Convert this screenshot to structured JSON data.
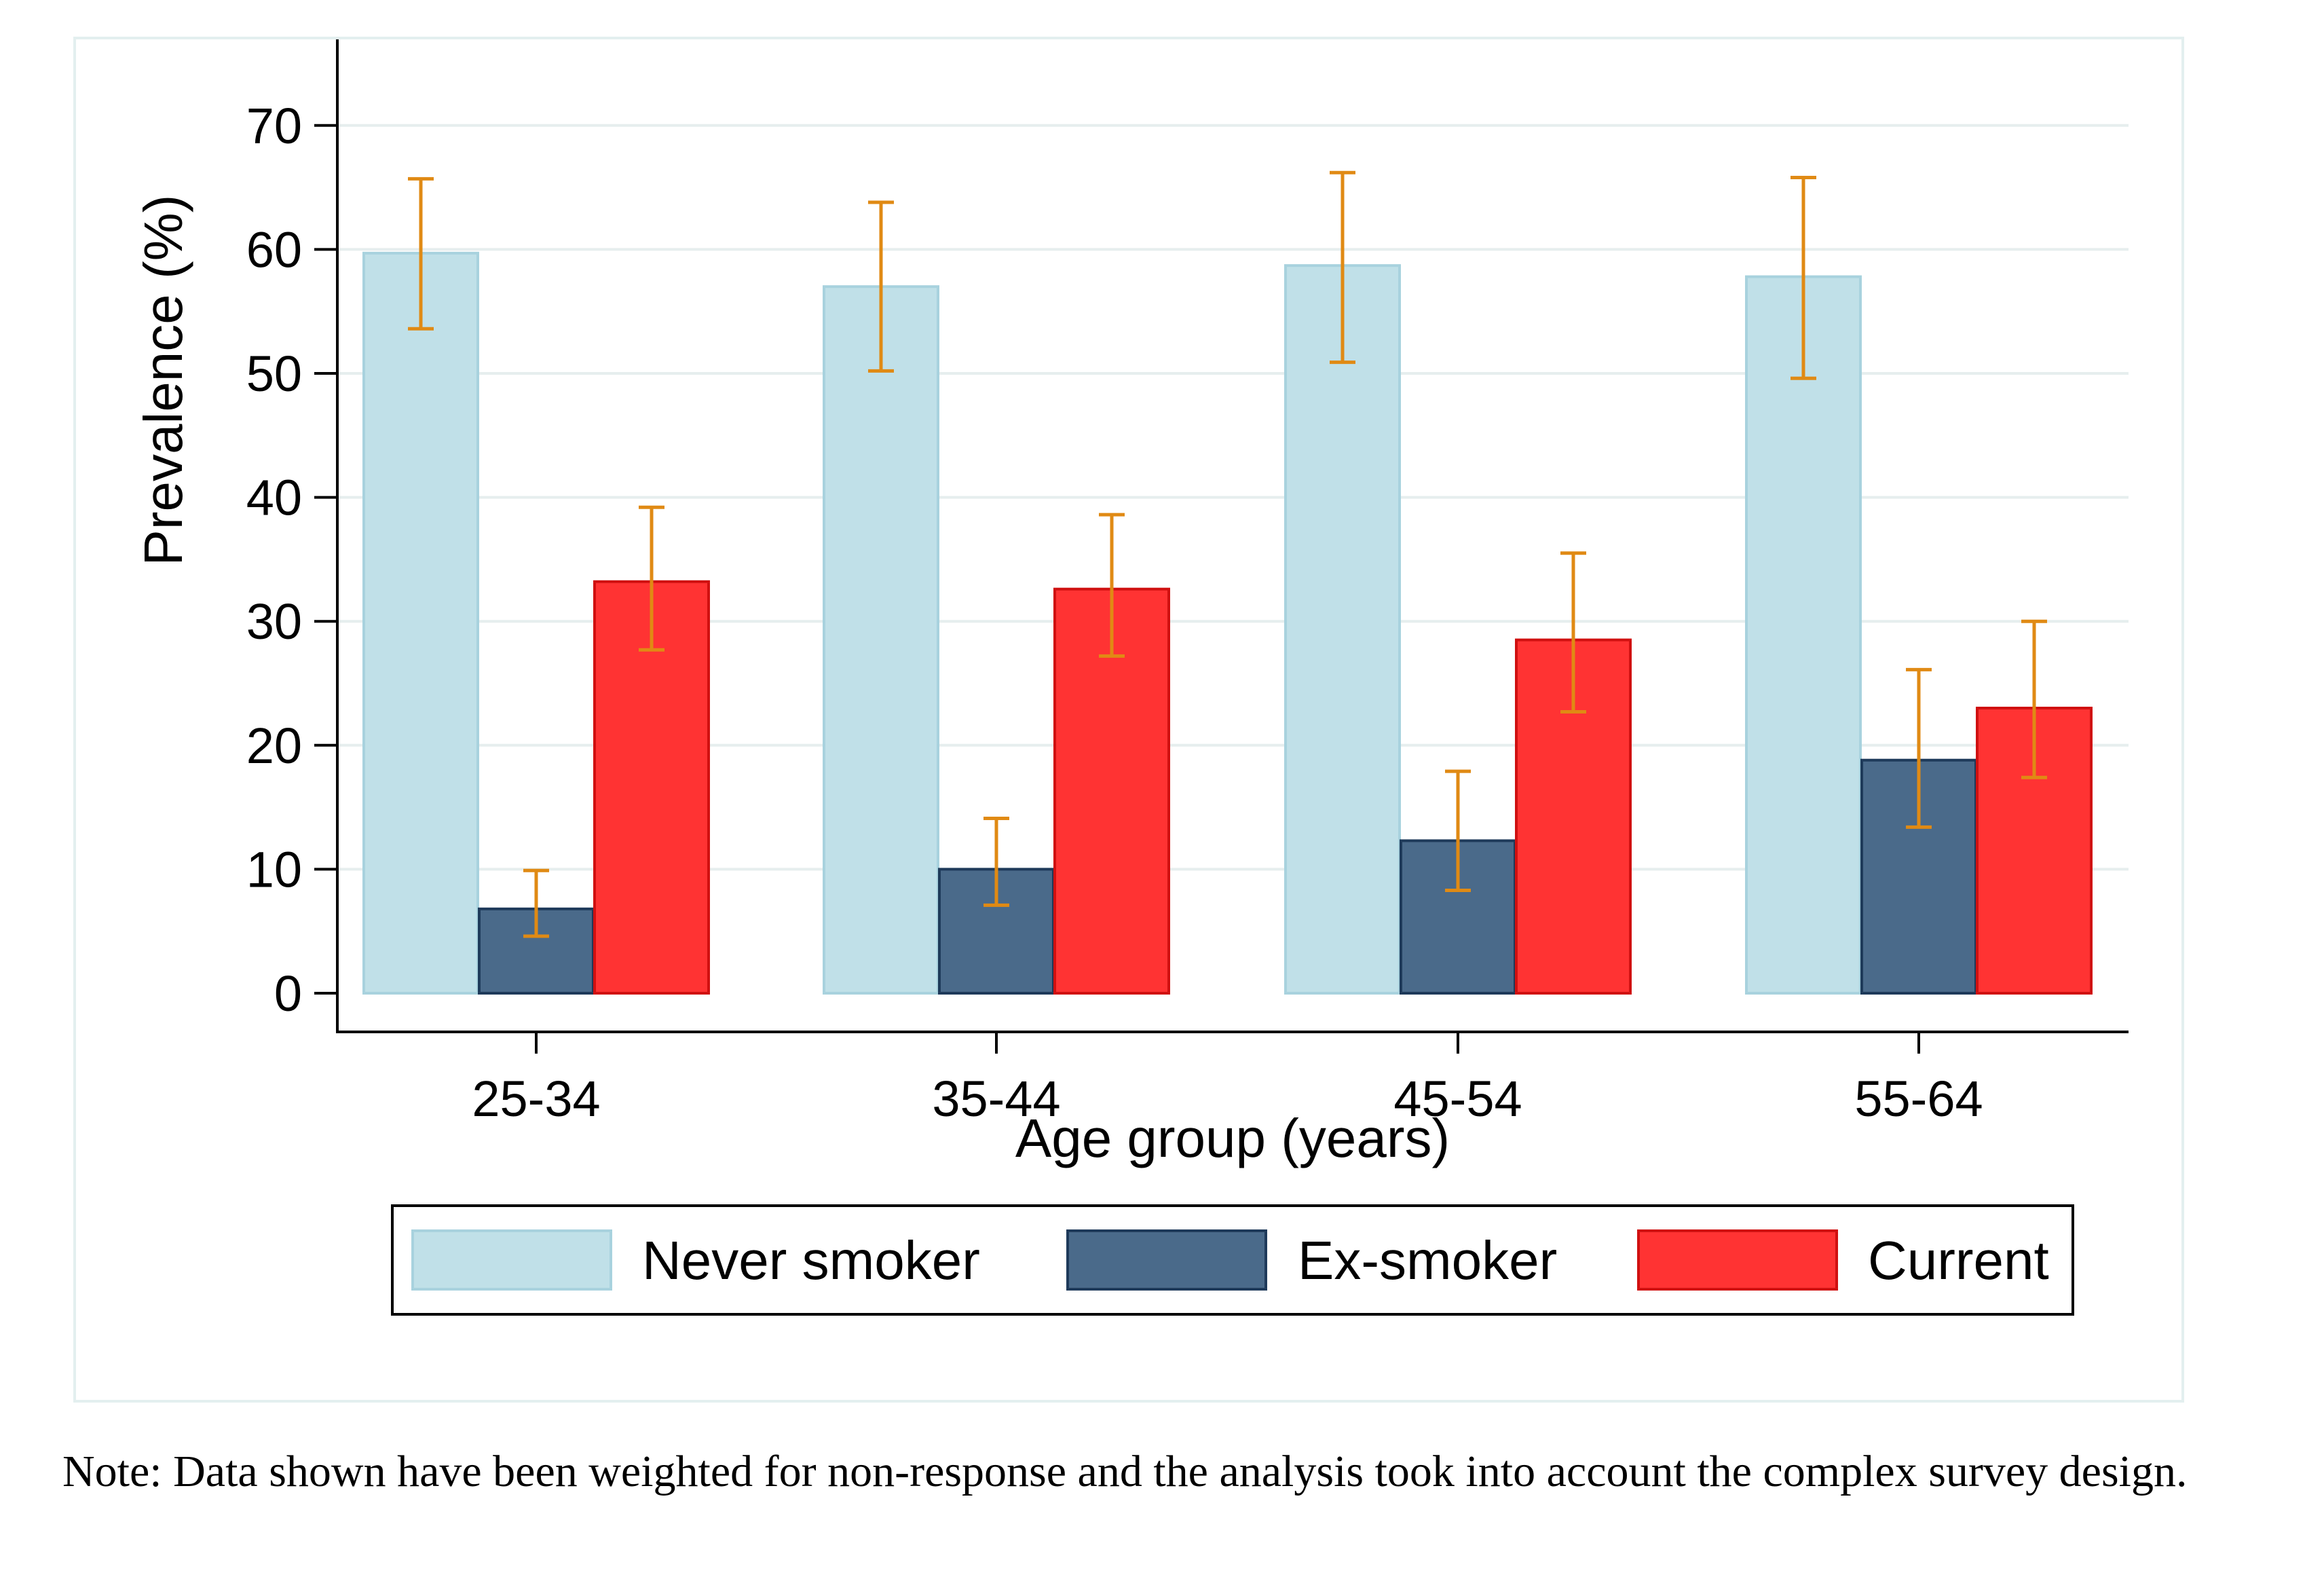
{
  "chart_data": {
    "type": "bar",
    "categories": [
      "25-34",
      "35-44",
      "45-54",
      "55-64"
    ],
    "xlabel": "Age group (years)",
    "ylabel": "Prevalence (%)",
    "ylim": [
      0,
      70
    ],
    "yticks": [
      0,
      10,
      20,
      30,
      40,
      50,
      60,
      70
    ],
    "ytick_labels": [
      "0",
      "10",
      "20",
      "30",
      "40",
      "50",
      "60",
      "70"
    ],
    "grid": true,
    "legend_position": "bottom",
    "error_bar_color": "#e08a14",
    "series": [
      {
        "name": "Never smoker",
        "color": "#c0e0e8",
        "edge_color": "#a8d2de",
        "values": [
          59.7,
          57.0,
          58.7,
          57.8
        ],
        "lower": [
          53.6,
          50.2,
          50.9,
          49.6
        ],
        "upper": [
          65.7,
          63.8,
          66.2,
          65.8
        ]
      },
      {
        "name": "Ex-smoker",
        "color": "#4a6a8a",
        "edge_color": "#1e3a5a",
        "values": [
          6.8,
          10.0,
          12.3,
          18.8
        ],
        "lower": [
          4.6,
          7.1,
          8.3,
          13.4
        ],
        "upper": [
          9.9,
          14.1,
          17.9,
          26.1
        ]
      },
      {
        "name": "Current",
        "color": "#ff3333",
        "edge_color": "#d01010",
        "values": [
          33.2,
          32.6,
          28.5,
          23.0
        ],
        "lower": [
          27.7,
          27.2,
          22.7,
          17.4
        ],
        "upper": [
          39.2,
          38.6,
          35.5,
          30.0
        ]
      }
    ]
  },
  "note": {
    "text": "Note: Data shown have been weighted for non-response and the analysis took into account the complex survey design."
  }
}
